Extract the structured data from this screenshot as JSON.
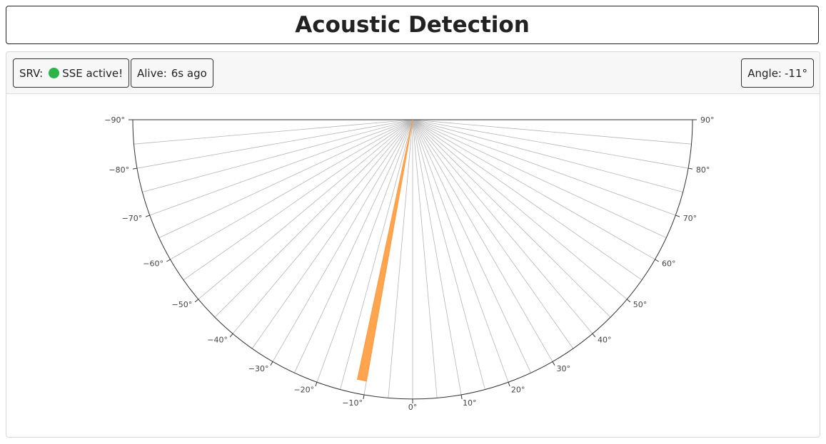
{
  "header": {
    "title": "Acoustic Detection"
  },
  "status": {
    "srv_label": "SRV:",
    "sse_text": "SSE active!",
    "sse_color": "#2db34a",
    "alive_label": "Alive:",
    "alive_value": "6s ago",
    "angle_label": "Angle:",
    "angle_value": "-11°"
  },
  "colors": {
    "beam": "#ff9a3c",
    "axis": "#333333",
    "grid": "#b5b5b5",
    "tick_text": "#444444"
  },
  "chart_data": {
    "type": "polar-semicircle",
    "theta_range": [
      -90,
      90
    ],
    "tick_step_deg": 10,
    "tick_labels": [
      "−90°",
      "−80°",
      "−70°",
      "−60°",
      "−50°",
      "−40°",
      "−30°",
      "−20°",
      "−10°",
      "0°",
      "10°",
      "20°",
      "30°",
      "40°",
      "50°",
      "60°",
      "70°",
      "80°",
      "90°"
    ],
    "spokes_step_deg": 5,
    "detection": {
      "angle_deg": -11,
      "width_deg": 2,
      "r_inner": 0,
      "r_outer": 0.95
    }
  }
}
